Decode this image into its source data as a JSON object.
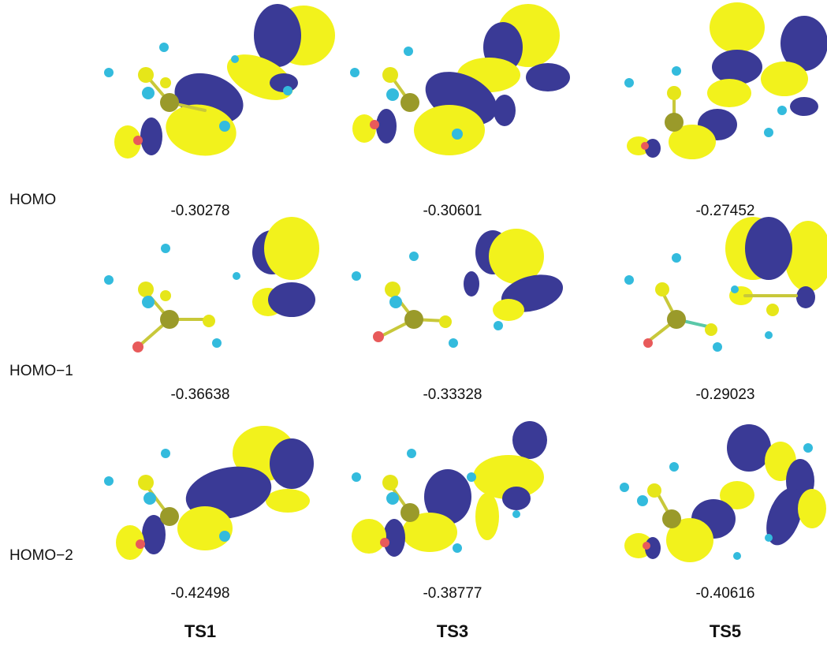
{
  "rows": [
    {
      "label": "HOMO"
    },
    {
      "label": "HOMO−1"
    },
    {
      "label": "HOMO−2"
    }
  ],
  "columns": [
    {
      "label": "TS1"
    },
    {
      "label": "TS3"
    },
    {
      "label": "TS5"
    }
  ],
  "energies": [
    [
      "-0.30278",
      "-0.30601",
      "-0.27452"
    ],
    [
      "-0.36638",
      "-0.33328",
      "-0.29023"
    ],
    [
      "-0.42498",
      "-0.38777",
      "-0.40616"
    ]
  ],
  "colors": {
    "lobe_positive": "#f2f21c",
    "lobe_negative": "#3a3a96",
    "atom_carbon": "#e6e619",
    "atom_center": "#9a9a2a",
    "atom_hydrogen": "#33bbdd",
    "atom_oxygen": "#e85a5a",
    "bond": "#c8c83a"
  }
}
